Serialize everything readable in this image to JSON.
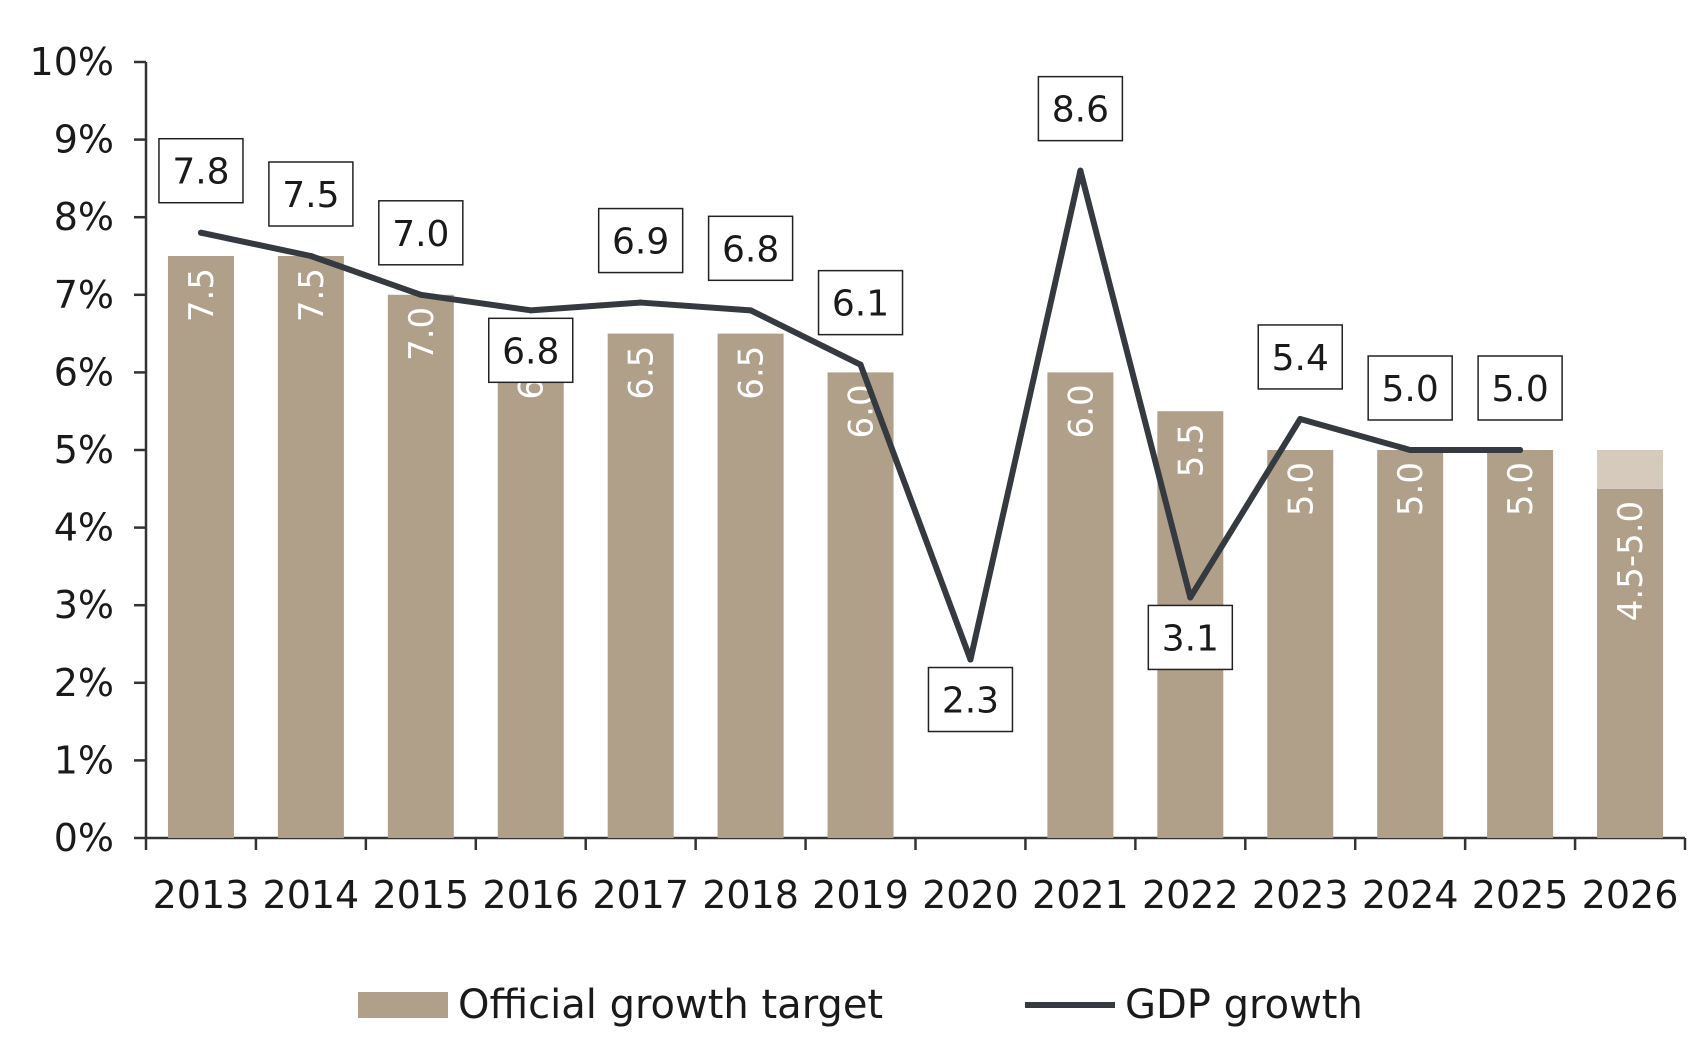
{
  "chart_data": {
    "type": "bar",
    "categories": [
      "2013",
      "2014",
      "2015",
      "2016",
      "2017",
      "2018",
      "2019",
      "2020",
      "2021",
      "2022",
      "2023",
      "2024",
      "2025",
      "2026"
    ],
    "series": [
      {
        "name": "Official growth target",
        "type": "bar",
        "values": [
          7.5,
          7.5,
          7.0,
          6.5,
          6.5,
          6.5,
          6.0,
          null,
          6.0,
          5.5,
          5.0,
          5.0,
          5.0,
          4.5
        ],
        "labels": [
          "7.5",
          "7.5",
          "7.0",
          "6.5",
          "6.5",
          "6.5",
          "6.0",
          "",
          "6.0",
          "5.5",
          "5.0",
          "5.0",
          "5.0",
          "4.5-5.0"
        ],
        "range_top": [
          null,
          null,
          null,
          null,
          null,
          null,
          null,
          null,
          null,
          null,
          null,
          null,
          null,
          5.0
        ]
      },
      {
        "name": "GDP growth",
        "type": "line",
        "values": [
          7.8,
          7.5,
          7.0,
          6.8,
          6.9,
          6.8,
          6.1,
          2.3,
          8.6,
          3.1,
          5.4,
          5.0,
          5.0,
          null
        ],
        "labels": [
          "7.8",
          "7.5",
          "7.0",
          "6.8",
          "6.9",
          "6.8",
          "6.1",
          "2.3",
          "8.6",
          "3.1",
          "5.4",
          "5.0",
          "5.0",
          ""
        ]
      }
    ],
    "yticks": [
      "0%",
      "1%",
      "2%",
      "3%",
      "4%",
      "5%",
      "6%",
      "7%",
      "8%",
      "9%",
      "10%"
    ],
    "ylim": [
      0,
      10
    ],
    "legend_position": "bottom",
    "colors": {
      "bar": "#b09f89",
      "bar_range": "#d6cabc",
      "line": "#343a3f",
      "axis": "#333333"
    }
  }
}
